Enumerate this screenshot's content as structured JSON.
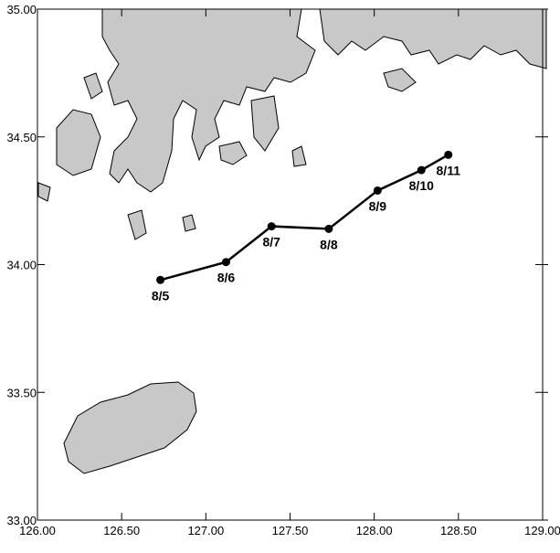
{
  "map": {
    "xaxis": {
      "range": [
        126.0,
        129.0
      ],
      "ticks": [
        "126.00",
        "126.50",
        "127.00",
        "127.50",
        "128.00",
        "128.50",
        "129.00"
      ]
    },
    "yaxis": {
      "range": [
        33.0,
        35.0
      ],
      "ticks": [
        "33.00",
        "33.50",
        "34.00",
        "34.50",
        "35.00"
      ]
    },
    "land_color": "#c8c8c8",
    "track_color": "#000000",
    "track": [
      {
        "label": "8/5",
        "lon": 126.73,
        "lat": 33.94
      },
      {
        "label": "8/6",
        "lon": 127.12,
        "lat": 34.01
      },
      {
        "label": "8/7",
        "lon": 127.39,
        "lat": 34.15
      },
      {
        "label": "8/8",
        "lon": 127.73,
        "lat": 34.14
      },
      {
        "label": "8/9",
        "lon": 128.02,
        "lat": 34.29
      },
      {
        "label": "8/10",
        "lon": 128.28,
        "lat": 34.37
      },
      {
        "label": "8/11",
        "lon": 128.44,
        "lat": 34.43
      }
    ]
  }
}
